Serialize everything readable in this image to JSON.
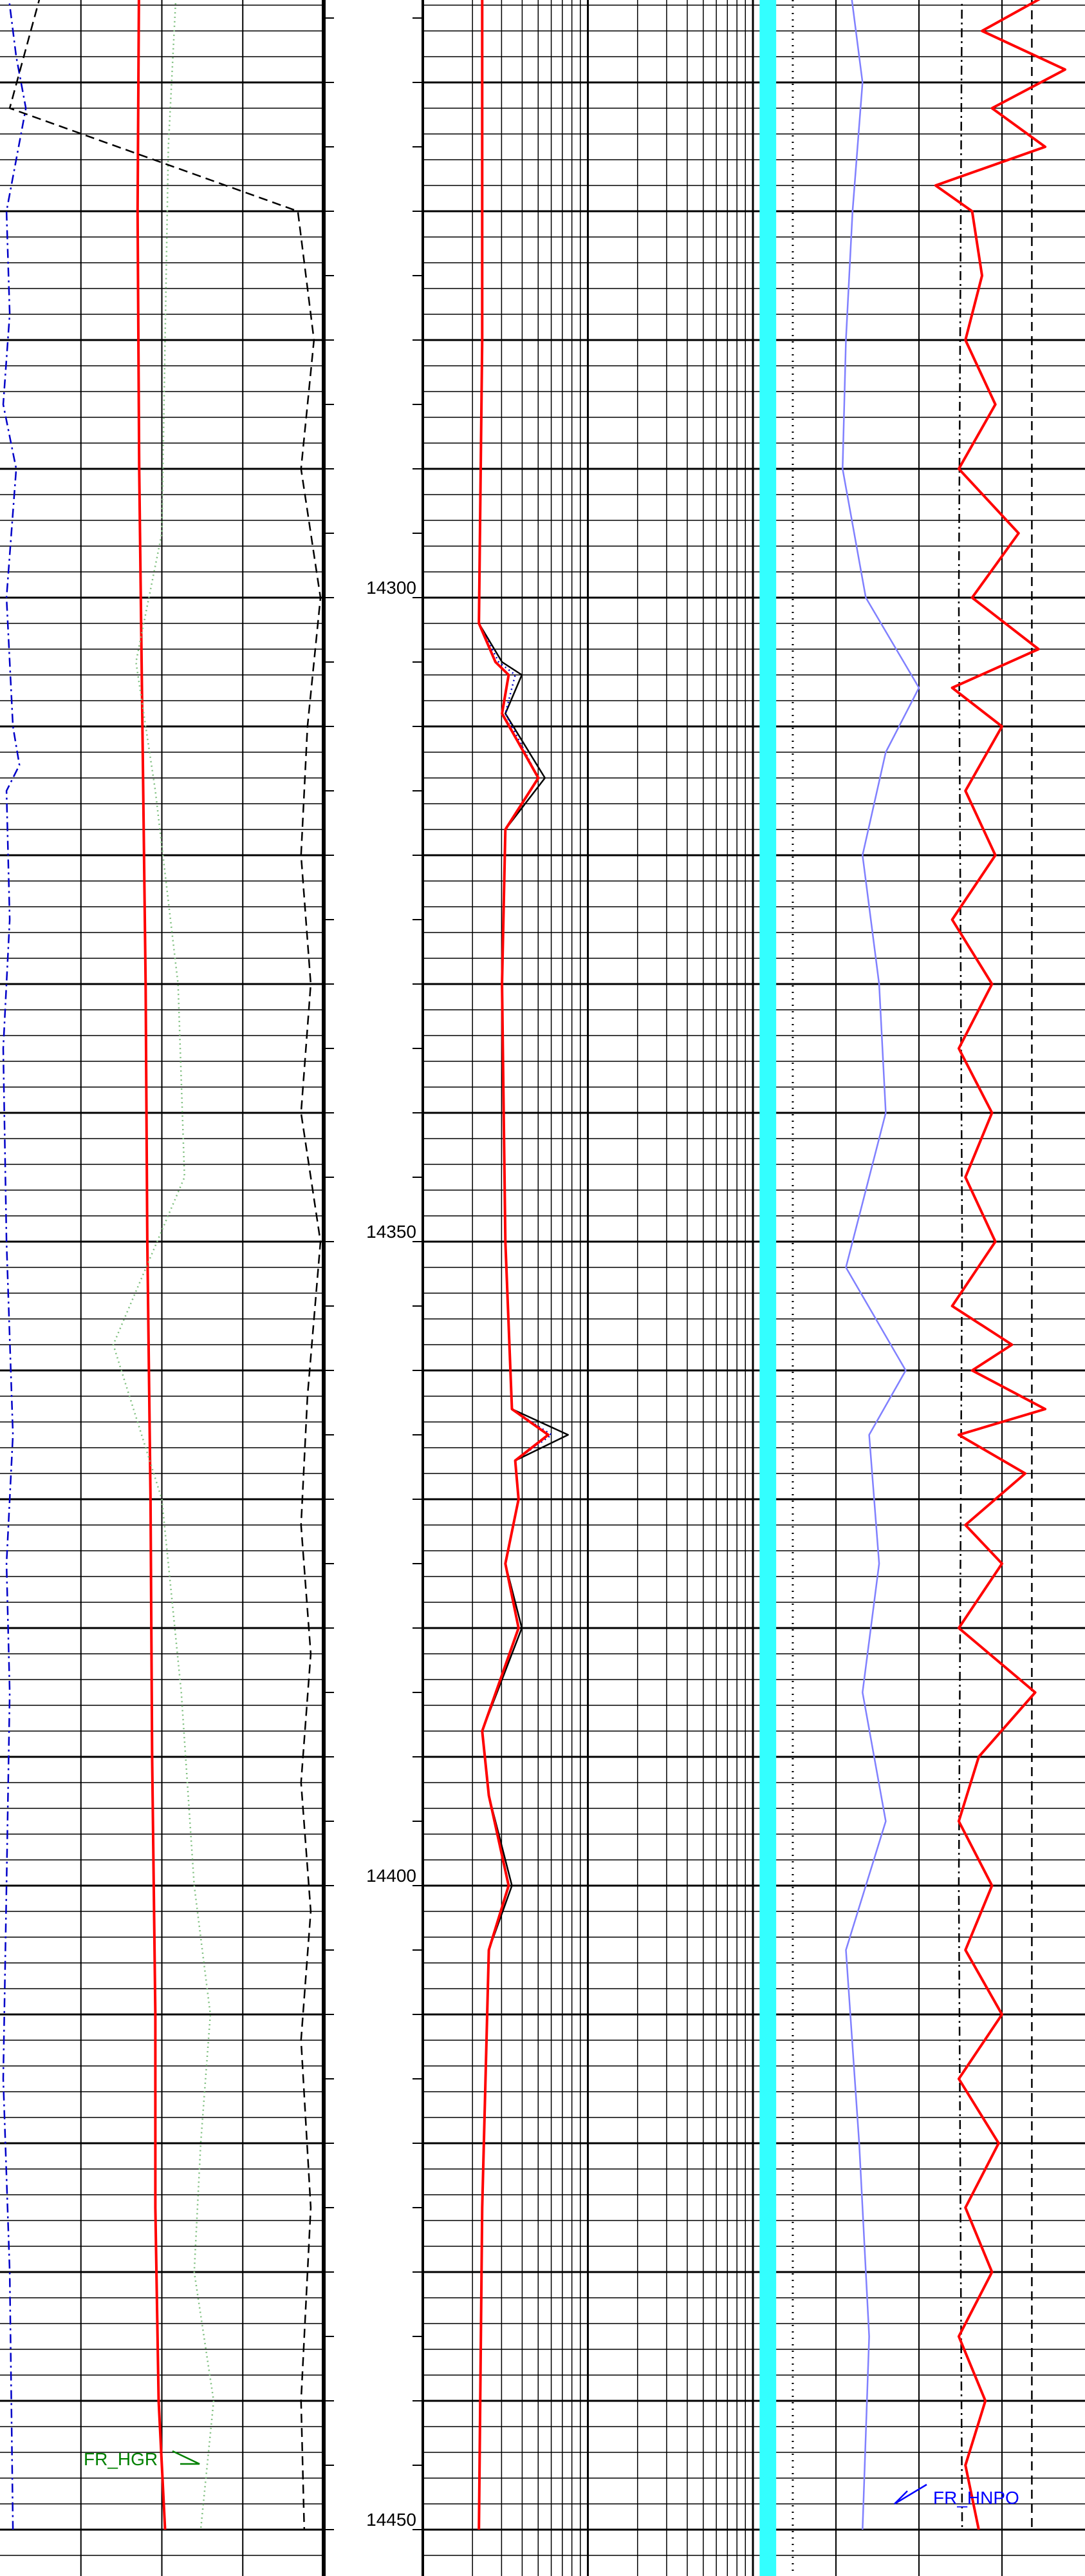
{
  "chart_data": {
    "type": "line",
    "title": "",
    "depth_axis": {
      "range": [
        14250,
        14450
      ],
      "tick_labels": [
        "14300",
        "14350",
        "14400",
        "14450"
      ],
      "ticks": [
        14300,
        14350,
        14400,
        14450
      ]
    },
    "annotations": [
      {
        "text": "FR_HGR",
        "color": "#008000",
        "depth": 14444.5,
        "track": "track1"
      },
      {
        "text": "FR_HNPO",
        "color": "#0000ff",
        "depth": 14447.5,
        "track": "track3"
      }
    ],
    "colors": {
      "red": "#ff0000",
      "blue": "#0000c8",
      "green": "#7fbf7f",
      "black": "#000000",
      "cyan": "#33ffff",
      "lavender": "#8080ff",
      "grid": "#000000"
    },
    "tracks": [
      {
        "name": "track1",
        "scale": "linear",
        "curves": [
          {
            "color": "red",
            "style": "solid",
            "points": [
              [
                14250,
                0.43
              ],
              [
                14270,
                0.425
              ],
              [
                14290,
                0.43
              ],
              [
                14310,
                0.44
              ],
              [
                14330,
                0.45
              ],
              [
                14350,
                0.455
              ],
              [
                14370,
                0.465
              ],
              [
                14390,
                0.47
              ],
              [
                14410,
                0.48
              ],
              [
                14425,
                0.48
              ],
              [
                14440,
                0.49
              ],
              [
                14450,
                0.51
              ]
            ]
          },
          {
            "color": "blue",
            "style": "dashdot",
            "points": [
              [
                14250,
                0.01
              ],
              [
                14258,
                0.05
              ],
              [
                14262,
                0.08
              ],
              [
                14270,
                0.02
              ],
              [
                14278,
                0.03
              ],
              [
                14285,
                0.01
              ],
              [
                14290,
                0.05
              ],
              [
                14300,
                0.02
              ],
              [
                14310,
                0.04
              ],
              [
                14313,
                0.06
              ],
              [
                14315,
                0.02
              ],
              [
                14325,
                0.03
              ],
              [
                14335,
                0.01
              ],
              [
                14350,
                0.02
              ],
              [
                14365,
                0.04
              ],
              [
                14375,
                0.02
              ],
              [
                14385,
                0.03
              ],
              [
                14400,
                0.02
              ],
              [
                14415,
                0.01
              ],
              [
                14430,
                0.03
              ],
              [
                14450,
                0.04
              ]
            ]
          },
          {
            "color": "green",
            "style": "dotted",
            "points": [
              [
                14250,
                0.55
              ],
              [
                14265,
                0.52
              ],
              [
                14280,
                0.51
              ],
              [
                14295,
                0.5
              ],
              [
                14305,
                0.42
              ],
              [
                14315,
                0.48
              ],
              [
                14330,
                0.55
              ],
              [
                14345,
                0.57
              ],
              [
                14358,
                0.35
              ],
              [
                14370,
                0.5
              ],
              [
                14385,
                0.56
              ],
              [
                14400,
                0.6
              ],
              [
                14410,
                0.65
              ],
              [
                14420,
                0.62
              ],
              [
                14430,
                0.6
              ],
              [
                14440,
                0.66
              ],
              [
                14450,
                0.62
              ]
            ]
          },
          {
            "color": "black",
            "style": "dashed",
            "points": [
              [
                14250,
                0.16
              ],
              [
                14262,
                0.03
              ],
              [
                14270,
                0.92
              ],
              [
                14280,
                0.97
              ],
              [
                14290,
                0.93
              ],
              [
                14300,
                0.99
              ],
              [
                14310,
                0.95
              ],
              [
                14320,
                0.93
              ],
              [
                14330,
                0.96
              ],
              [
                14340,
                0.93
              ],
              [
                14350,
                0.99
              ],
              [
                14362,
                0.95
              ],
              [
                14372,
                0.93
              ],
              [
                14382,
                0.96
              ],
              [
                14392,
                0.93
              ],
              [
                14402,
                0.96
              ],
              [
                14412,
                0.93
              ],
              [
                14425,
                0.96
              ],
              [
                14440,
                0.93
              ],
              [
                14450,
                0.94
              ]
            ]
          }
        ]
      },
      {
        "name": "track2",
        "scale": "log",
        "decades": 2,
        "curves": [
          {
            "color": "black",
            "style": "solid",
            "points": [
              [
                14250,
                0.18
              ],
              [
                14280,
                0.18
              ],
              [
                14302,
                0.17
              ],
              [
                14305,
                0.24
              ],
              [
                14306,
                0.3
              ],
              [
                14309,
                0.25
              ],
              [
                14314,
                0.37
              ],
              [
                14318,
                0.25
              ],
              [
                14330,
                0.24
              ],
              [
                14350,
                0.25
              ],
              [
                14363,
                0.27
              ],
              [
                14365,
                0.44
              ],
              [
                14367,
                0.28
              ],
              [
                14370,
                0.29
              ],
              [
                14375,
                0.25
              ],
              [
                14380,
                0.3
              ],
              [
                14388,
                0.18
              ],
              [
                14393,
                0.2
              ],
              [
                14400,
                0.27
              ],
              [
                14405,
                0.2
              ],
              [
                14425,
                0.18
              ],
              [
                14450,
                0.17
              ]
            ]
          },
          {
            "color": "blue",
            "style": "dotted",
            "points": [
              [
                14250,
                0.18
              ],
              [
                14280,
                0.18
              ],
              [
                14302,
                0.17
              ],
              [
                14305,
                0.23
              ],
              [
                14306,
                0.28
              ],
              [
                14309,
                0.25
              ],
              [
                14314,
                0.35
              ],
              [
                14318,
                0.25
              ],
              [
                14330,
                0.24
              ],
              [
                14350,
                0.25
              ],
              [
                14363,
                0.27
              ],
              [
                14365,
                0.39
              ],
              [
                14367,
                0.28
              ],
              [
                14370,
                0.29
              ],
              [
                14375,
                0.25
              ],
              [
                14380,
                0.29
              ],
              [
                14388,
                0.18
              ],
              [
                14393,
                0.2
              ],
              [
                14400,
                0.26
              ],
              [
                14405,
                0.2
              ],
              [
                14425,
                0.18
              ],
              [
                14450,
                0.17
              ]
            ]
          },
          {
            "color": "red",
            "style": "solid",
            "points": [
              [
                14250,
                0.18
              ],
              [
                14280,
                0.18
              ],
              [
                14302,
                0.17
              ],
              [
                14305,
                0.22
              ],
              [
                14306,
                0.26
              ],
              [
                14309,
                0.24
              ],
              [
                14314,
                0.35
              ],
              [
                14318,
                0.25
              ],
              [
                14330,
                0.24
              ],
              [
                14350,
                0.25
              ],
              [
                14363,
                0.27
              ],
              [
                14365,
                0.38
              ],
              [
                14367,
                0.28
              ],
              [
                14370,
                0.29
              ],
              [
                14375,
                0.25
              ],
              [
                14380,
                0.29
              ],
              [
                14388,
                0.18
              ],
              [
                14393,
                0.2
              ],
              [
                14400,
                0.26
              ],
              [
                14405,
                0.2
              ],
              [
                14425,
                0.18
              ],
              [
                14450,
                0.17
              ]
            ]
          }
        ]
      },
      {
        "name": "track3",
        "scale": "linear",
        "curves": [
          {
            "color": "lavender",
            "style": "solid",
            "points": [
              [
                14250,
                0.28
              ],
              [
                14260,
                0.33
              ],
              [
                14270,
                0.3
              ],
              [
                14280,
                0.28
              ],
              [
                14290,
                0.27
              ],
              [
                14300,
                0.34
              ],
              [
                14307,
                0.5
              ],
              [
                14312,
                0.4
              ],
              [
                14320,
                0.33
              ],
              [
                14330,
                0.38
              ],
              [
                14340,
                0.4
              ],
              [
                14352,
                0.28
              ],
              [
                14360,
                0.46
              ],
              [
                14365,
                0.35
              ],
              [
                14375,
                0.38
              ],
              [
                14385,
                0.33
              ],
              [
                14395,
                0.4
              ],
              [
                14405,
                0.28
              ],
              [
                14420,
                0.32
              ],
              [
                14435,
                0.35
              ],
              [
                14450,
                0.33
              ]
            ]
          },
          {
            "color": "black",
            "style": "dashdot",
            "points": [
              [
                14250,
                0.63
              ],
              [
                14300,
                0.62
              ],
              [
                14350,
                0.63
              ],
              [
                14400,
                0.62
              ],
              [
                14450,
                0.63
              ]
            ]
          },
          {
            "color": "black",
            "style": "dashed",
            "points": [
              [
                14250,
                0.84
              ],
              [
                14450,
                0.84
              ]
            ]
          },
          {
            "color": "red",
            "style": "solid",
            "points": [
              [
                14250,
                0.77
              ],
              [
                14253,
                0.9
              ],
              [
                14256,
                0.69
              ],
              [
                14259,
                0.94
              ],
              [
                14262,
                0.72
              ],
              [
                14265,
                0.88
              ],
              [
                14268,
                0.55
              ],
              [
                14270,
                0.66
              ],
              [
                14275,
                0.69
              ],
              [
                14280,
                0.64
              ],
              [
                14285,
                0.73
              ],
              [
                14290,
                0.62
              ],
              [
                14295,
                0.8
              ],
              [
                14300,
                0.66
              ],
              [
                14304,
                0.86
              ],
              [
                14307,
                0.6
              ],
              [
                14310,
                0.75
              ],
              [
                14315,
                0.64
              ],
              [
                14320,
                0.73
              ],
              [
                14325,
                0.6
              ],
              [
                14330,
                0.72
              ],
              [
                14335,
                0.62
              ],
              [
                14340,
                0.72
              ],
              [
                14345,
                0.64
              ],
              [
                14350,
                0.73
              ],
              [
                14355,
                0.6
              ],
              [
                14358,
                0.78
              ],
              [
                14360,
                0.66
              ],
              [
                14363,
                0.88
              ],
              [
                14365,
                0.62
              ],
              [
                14368,
                0.82
              ],
              [
                14372,
                0.64
              ],
              [
                14375,
                0.75
              ],
              [
                14380,
                0.62
              ],
              [
                14385,
                0.85
              ],
              [
                14390,
                0.68
              ],
              [
                14395,
                0.62
              ],
              [
                14400,
                0.72
              ],
              [
                14405,
                0.64
              ],
              [
                14410,
                0.75
              ],
              [
                14415,
                0.62
              ],
              [
                14420,
                0.74
              ],
              [
                14425,
                0.64
              ],
              [
                14430,
                0.72
              ],
              [
                14435,
                0.62
              ],
              [
                14440,
                0.7
              ],
              [
                14445,
                0.64
              ],
              [
                14450,
                0.68
              ]
            ]
          }
        ]
      }
    ]
  }
}
